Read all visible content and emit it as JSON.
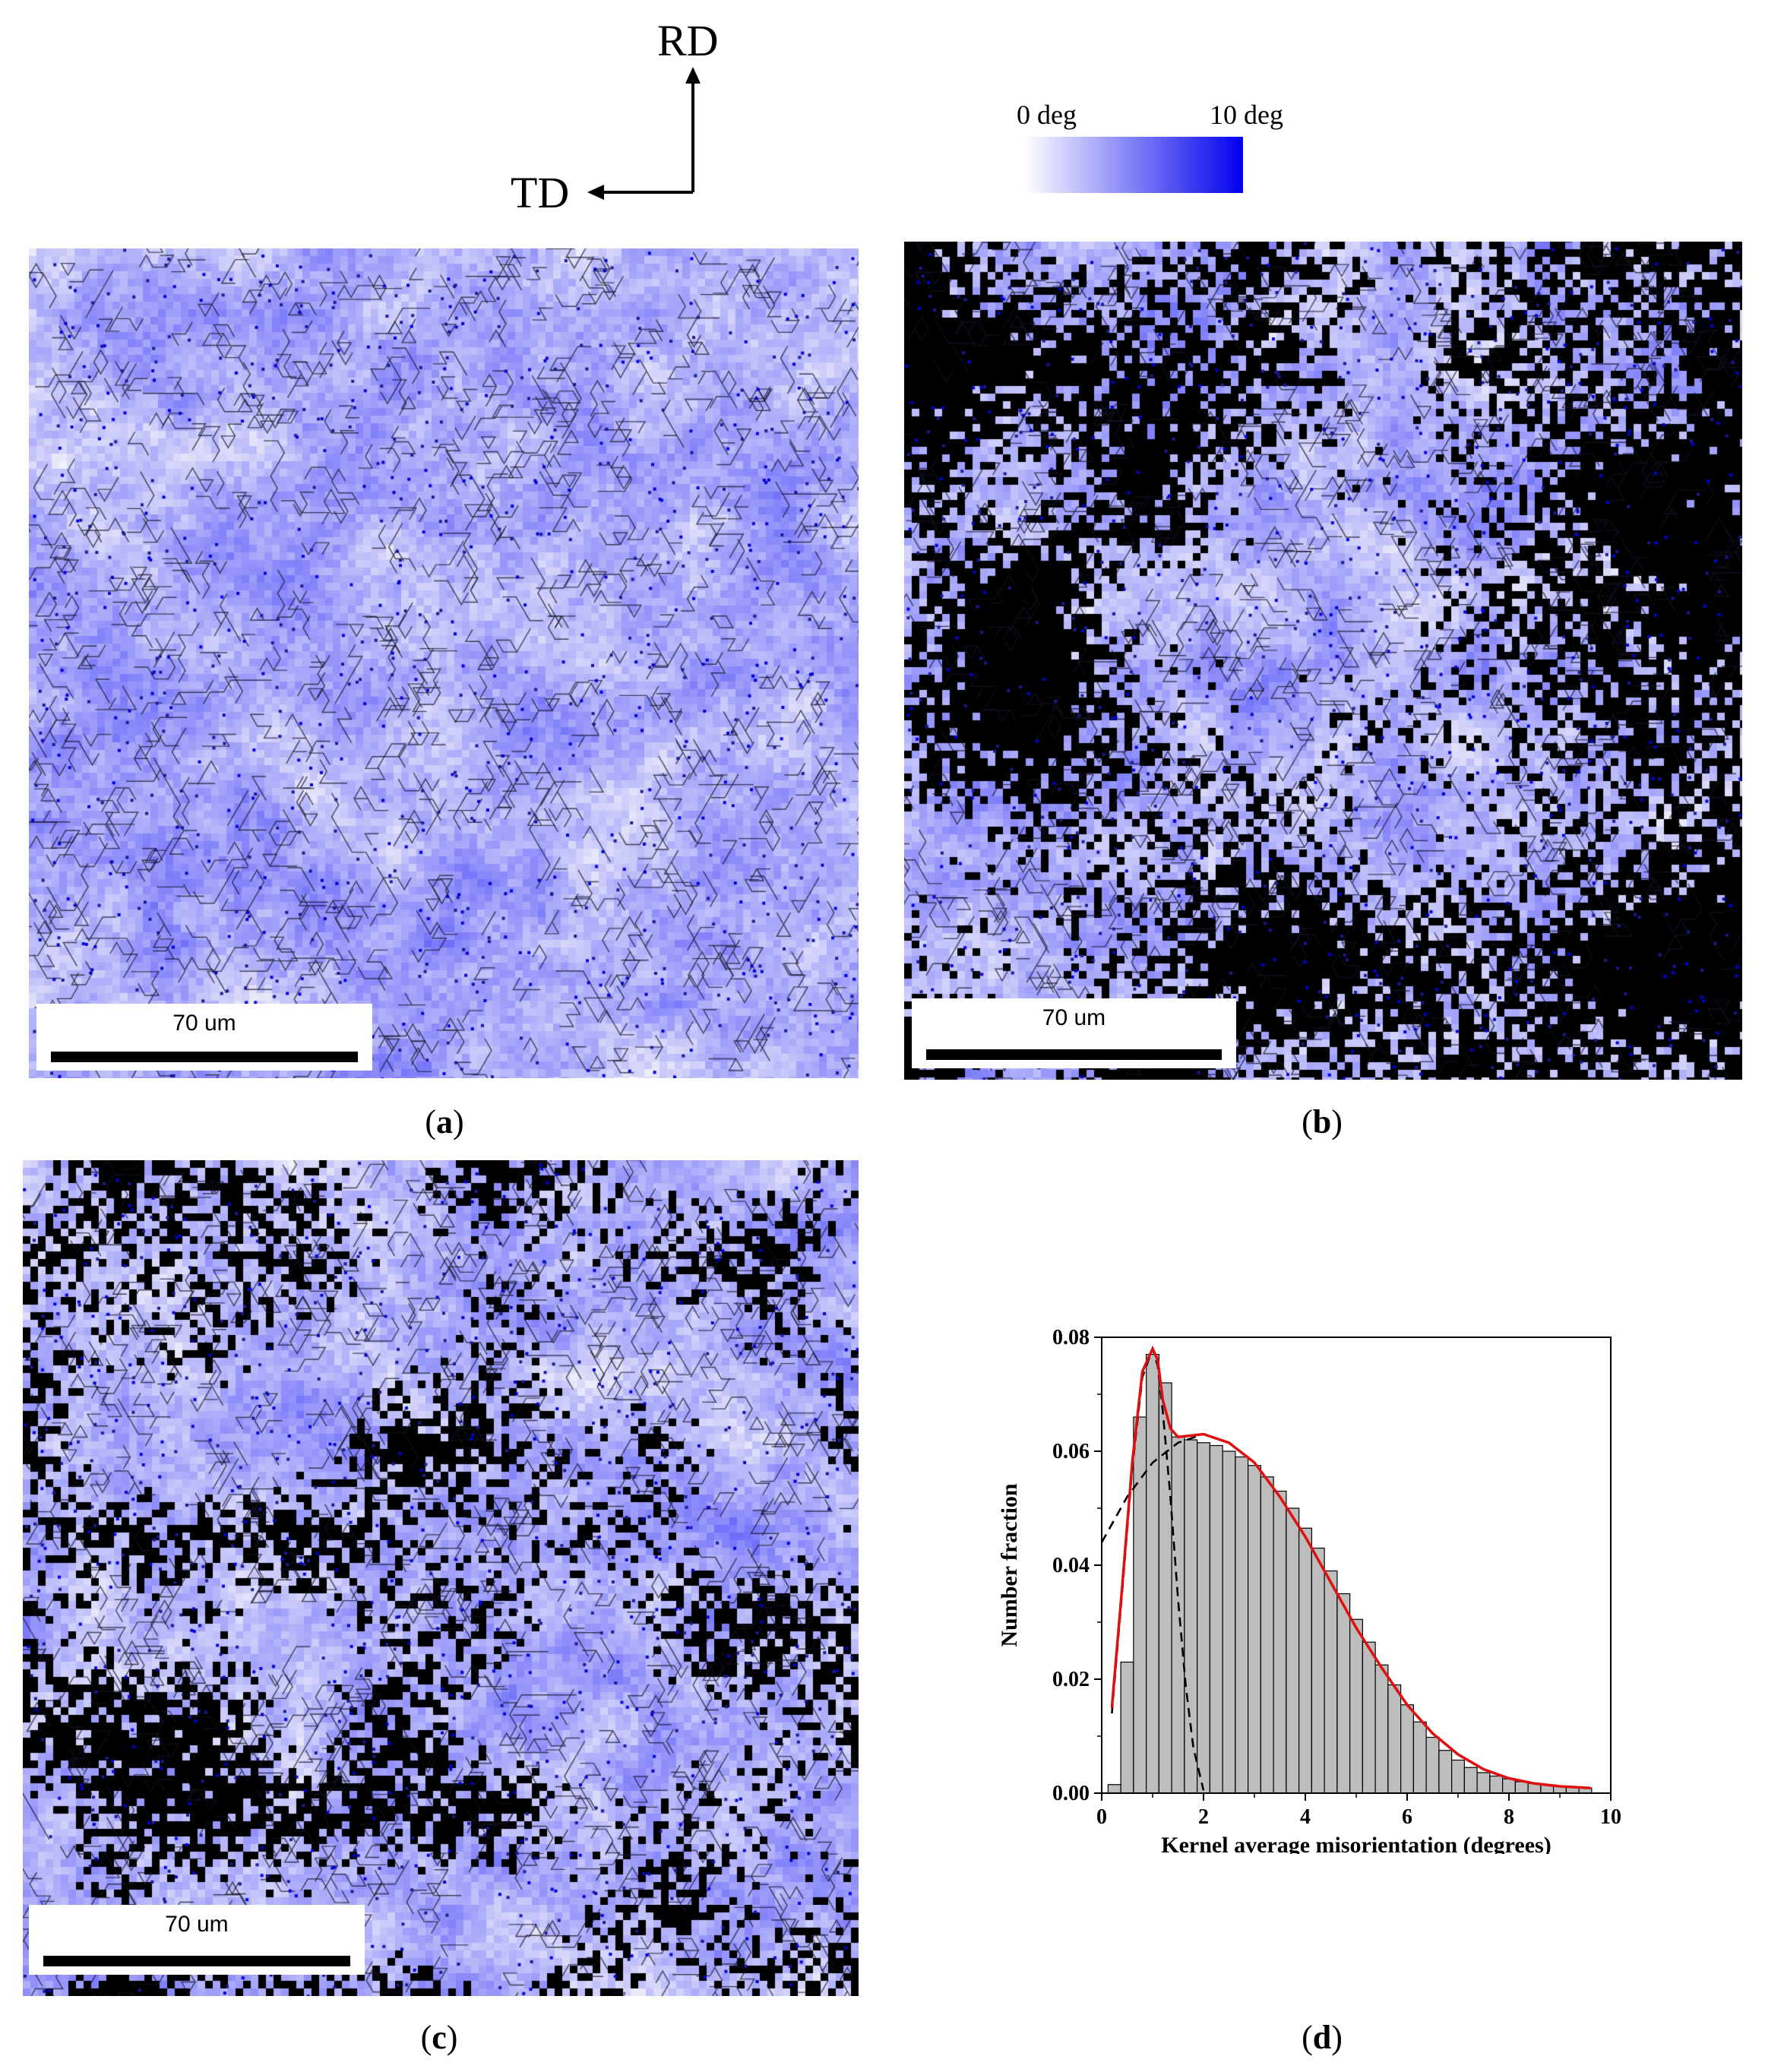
{
  "orientation": {
    "rd_label": "RD",
    "td_label": "TD"
  },
  "colorbar": {
    "min_label": "0 deg",
    "max_label": "10 deg",
    "color_min": "#ffffff",
    "color_max": "#0000ee"
  },
  "panels": [
    {
      "caption_letter": "a",
      "scale_label": "70 um",
      "description_hidden": true
    },
    {
      "caption_letter": "b",
      "scale_label": "70 um"
    },
    {
      "caption_letter": "c",
      "scale_label": "70 um"
    },
    {
      "caption_letter": "d"
    }
  ],
  "chart_data": {
    "type": "bar",
    "xlabel": "Kernel average misorientation (degrees)",
    "ylabel": "Number fraction",
    "xlim": [
      0,
      10
    ],
    "ylim": [
      0,
      0.08
    ],
    "xticks": [
      0,
      2,
      4,
      6,
      8,
      10
    ],
    "yticks": [
      0.0,
      0.02,
      0.04,
      0.06,
      0.08
    ],
    "bin_width": 0.25,
    "bars": [
      {
        "x": 0.25,
        "y": 0.0015
      },
      {
        "x": 0.5,
        "y": 0.023
      },
      {
        "x": 0.75,
        "y": 0.066
      },
      {
        "x": 1.0,
        "y": 0.077
      },
      {
        "x": 1.25,
        "y": 0.072
      },
      {
        "x": 1.5,
        "y": 0.0625
      },
      {
        "x": 1.75,
        "y": 0.062
      },
      {
        "x": 2.0,
        "y": 0.0615
      },
      {
        "x": 2.25,
        "y": 0.061
      },
      {
        "x": 2.5,
        "y": 0.06
      },
      {
        "x": 2.75,
        "y": 0.059
      },
      {
        "x": 3.0,
        "y": 0.0575
      },
      {
        "x": 3.25,
        "y": 0.0555
      },
      {
        "x": 3.5,
        "y": 0.053
      },
      {
        "x": 3.75,
        "y": 0.05
      },
      {
        "x": 4.0,
        "y": 0.0465
      },
      {
        "x": 4.25,
        "y": 0.043
      },
      {
        "x": 4.5,
        "y": 0.039
      },
      {
        "x": 4.75,
        "y": 0.035
      },
      {
        "x": 5.0,
        "y": 0.0305
      },
      {
        "x": 5.25,
        "y": 0.0265
      },
      {
        "x": 5.5,
        "y": 0.0225
      },
      {
        "x": 5.75,
        "y": 0.019
      },
      {
        "x": 6.0,
        "y": 0.0155
      },
      {
        "x": 6.25,
        "y": 0.0125
      },
      {
        "x": 6.5,
        "y": 0.0098
      },
      {
        "x": 6.75,
        "y": 0.0075
      },
      {
        "x": 7.0,
        "y": 0.0058
      },
      {
        "x": 7.25,
        "y": 0.0045
      },
      {
        "x": 7.5,
        "y": 0.0036
      },
      {
        "x": 7.75,
        "y": 0.003
      },
      {
        "x": 8.0,
        "y": 0.0025
      },
      {
        "x": 8.25,
        "y": 0.002
      },
      {
        "x": 8.5,
        "y": 0.0017
      },
      {
        "x": 8.75,
        "y": 0.0014
      },
      {
        "x": 9.0,
        "y": 0.0012
      },
      {
        "x": 9.25,
        "y": 0.001
      },
      {
        "x": 9.5,
        "y": 0.0009
      }
    ],
    "fit_curves": [
      {
        "style": "dashed-black",
        "points": [
          [
            0.2,
            0.014
          ],
          [
            0.4,
            0.035
          ],
          [
            0.6,
            0.057
          ],
          [
            0.8,
            0.073
          ],
          [
            1.0,
            0.078
          ],
          [
            1.1,
            0.075
          ],
          [
            1.2,
            0.067
          ],
          [
            1.35,
            0.052
          ],
          [
            1.5,
            0.034
          ],
          [
            1.65,
            0.019
          ],
          [
            1.8,
            0.008
          ],
          [
            2.0,
            0.0005
          ]
        ]
      },
      {
        "style": "dashed-black",
        "points": [
          [
            0.0,
            0.044
          ],
          [
            0.5,
            0.052
          ],
          [
            1.0,
            0.058
          ],
          [
            1.5,
            0.0615
          ],
          [
            2.0,
            0.063
          ],
          [
            2.5,
            0.0615
          ],
          [
            3.0,
            0.058
          ],
          [
            3.5,
            0.052
          ],
          [
            4.0,
            0.045
          ],
          [
            4.5,
            0.037
          ],
          [
            5.0,
            0.029
          ],
          [
            5.5,
            0.022
          ],
          [
            6.0,
            0.0155
          ],
          [
            6.5,
            0.0105
          ],
          [
            7.0,
            0.0068
          ],
          [
            7.5,
            0.0042
          ],
          [
            8.0,
            0.0026
          ],
          [
            8.5,
            0.0017
          ],
          [
            9.0,
            0.0012
          ],
          [
            9.6,
            0.0009
          ]
        ]
      },
      {
        "style": "solid-red",
        "points": [
          [
            0.2,
            0.015
          ],
          [
            0.4,
            0.036
          ],
          [
            0.6,
            0.058
          ],
          [
            0.8,
            0.074
          ],
          [
            1.0,
            0.078
          ],
          [
            1.1,
            0.076
          ],
          [
            1.2,
            0.069
          ],
          [
            1.35,
            0.064
          ],
          [
            1.5,
            0.0625
          ],
          [
            2.0,
            0.063
          ],
          [
            2.5,
            0.0615
          ],
          [
            3.0,
            0.058
          ],
          [
            3.5,
            0.052
          ],
          [
            4.0,
            0.045
          ],
          [
            4.5,
            0.037
          ],
          [
            5.0,
            0.029
          ],
          [
            5.5,
            0.022
          ],
          [
            6.0,
            0.0155
          ],
          [
            6.5,
            0.0105
          ],
          [
            7.0,
            0.0068
          ],
          [
            7.5,
            0.0042
          ],
          [
            8.0,
            0.0026
          ],
          [
            8.5,
            0.0017
          ],
          [
            9.0,
            0.0012
          ],
          [
            9.6,
            0.0009
          ]
        ]
      }
    ]
  }
}
